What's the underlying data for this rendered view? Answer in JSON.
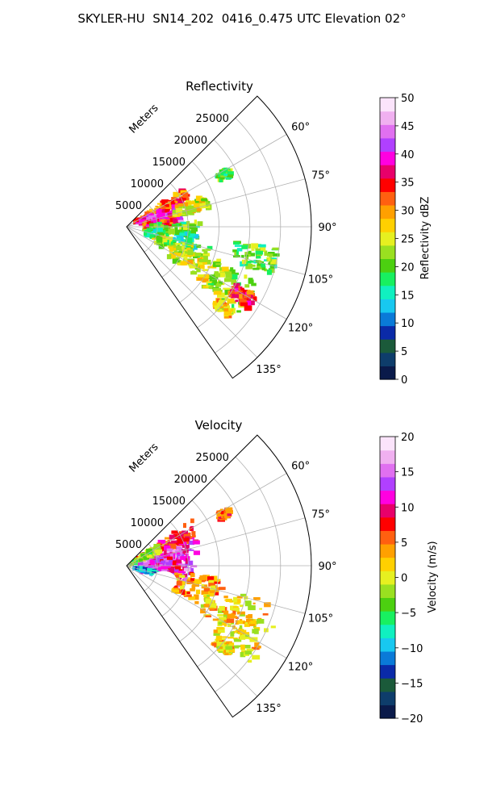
{
  "figure_title": "SKYLER-HU  SN14_202  0416_0.475 UTC Elevation 02°",
  "chart_data": [
    {
      "type": "heatmap",
      "subtype": "radar-ppi-sector",
      "title": "Reflectivity",
      "range_label": "Meters",
      "range_ticks": [
        "5000",
        "10000",
        "15000",
        "20000",
        "25000"
      ],
      "range_values": [
        5000,
        10000,
        15000,
        20000,
        25000
      ],
      "range_max": 30000,
      "azimuth_range_deg": [
        45,
        145
      ],
      "azimuth_tick_values": [
        60,
        75,
        90,
        105,
        120,
        135
      ],
      "azimuth_ticks": [
        "60°",
        "75°",
        "90°",
        "105°",
        "120°",
        "135°"
      ],
      "grid": true,
      "colorbar": {
        "label": "Reflectivity dBZ",
        "min": 0,
        "max": 50,
        "tick_values": [
          0,
          5,
          10,
          15,
          20,
          25,
          30,
          35,
          40,
          45,
          50
        ],
        "ticks": [
          "0",
          "5",
          "10",
          "15",
          "20",
          "25",
          "30",
          "35",
          "40",
          "45",
          "50"
        ],
        "colors": [
          "#0a1a4a",
          "#0e3d6b",
          "#1b5a3a",
          "#0a2aa8",
          "#0a7ad8",
          "#18c8f0",
          "#10f0c0",
          "#18f060",
          "#4cd010",
          "#9ae020",
          "#e6f020",
          "#ffd000",
          "#ffa000",
          "#ff6010",
          "#ff0000",
          "#e8006a",
          "#ff00e0",
          "#b040ff",
          "#e070f0",
          "#f0b0f0",
          "#fbe4fb"
        ]
      }
    },
    {
      "type": "heatmap",
      "subtype": "radar-ppi-sector",
      "title": "Velocity",
      "range_label": "Meters",
      "range_ticks": [
        "5000",
        "10000",
        "15000",
        "20000",
        "25000"
      ],
      "range_values": [
        5000,
        10000,
        15000,
        20000,
        25000
      ],
      "range_max": 30000,
      "azimuth_range_deg": [
        45,
        145
      ],
      "azimuth_tick_values": [
        60,
        75,
        90,
        105,
        120,
        135
      ],
      "azimuth_ticks": [
        "60°",
        "75°",
        "90°",
        "105°",
        "120°",
        "135°"
      ],
      "grid": true,
      "colorbar": {
        "label": "Velocity (m/s)",
        "min": -20,
        "max": 20,
        "tick_values": [
          -20,
          -15,
          -10,
          -5,
          0,
          5,
          10,
          15,
          20
        ],
        "ticks": [
          "−20",
          "−15",
          "−10",
          "−5",
          "0",
          "5",
          "10",
          "15",
          "20"
        ],
        "colors": [
          "#0a1a4a",
          "#0e3d6b",
          "#1b5a3a",
          "#0a2aa8",
          "#0a7ad8",
          "#18c8f0",
          "#10f0c0",
          "#18f060",
          "#4cd010",
          "#9ae020",
          "#e6f020",
          "#ffd000",
          "#ffa000",
          "#ff6010",
          "#ff0000",
          "#e8006a",
          "#ff00e0",
          "#b040ff",
          "#e070f0",
          "#f0b0f0",
          "#fbe4fb"
        ]
      }
    }
  ]
}
